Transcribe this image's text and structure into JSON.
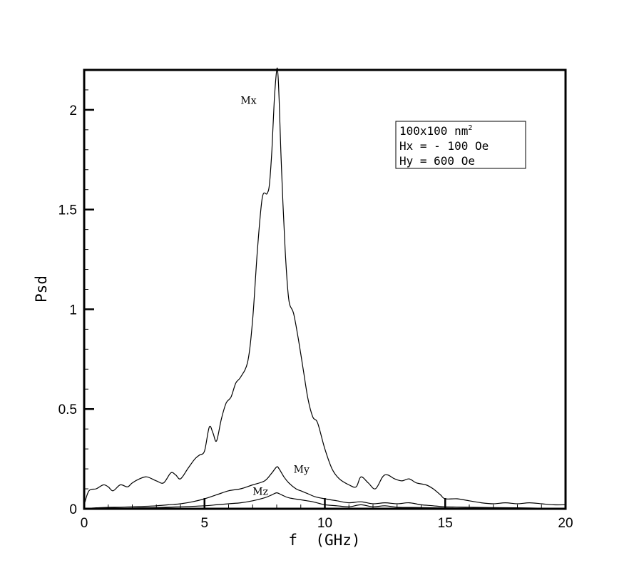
{
  "chart_data": {
    "type": "line",
    "title": "",
    "xlabel": "f  (GHz)",
    "ylabel": "Psd",
    "xlim": [
      0,
      20
    ],
    "ylim": [
      0,
      2.2
    ],
    "x_ticks": [
      0,
      5,
      10,
      15,
      20
    ],
    "x_tick_labels": [
      "0",
      "5",
      "10",
      "15",
      "20"
    ],
    "y_ticks": [
      0,
      0.5,
      1,
      1.5,
      2
    ],
    "y_tick_labels": [
      "0",
      "0.5",
      "1",
      "1.5",
      "2"
    ],
    "grid": false,
    "legend_position": "top-right",
    "annotation_box": {
      "line1_main": "100x100 nm",
      "line1_sup": "2",
      "line2": "Hx = - 100 Oe",
      "line3": "Hy = 600 Oe"
    },
    "series": [
      {
        "name": "Mx",
        "label_at": [
          6.5,
          2.03
        ],
        "x": [
          0,
          0.2,
          0.5,
          0.8,
          1.0,
          1.2,
          1.5,
          1.8,
          2.0,
          2.3,
          2.6,
          3.0,
          3.3,
          3.6,
          3.8,
          4.0,
          4.3,
          4.6,
          4.8,
          5.0,
          5.2,
          5.35,
          5.5,
          5.7,
          5.9,
          6.1,
          6.3,
          6.5,
          6.8,
          7.0,
          7.2,
          7.4,
          7.6,
          7.7,
          7.8,
          7.9,
          8.0,
          8.05,
          8.1,
          8.2,
          8.35,
          8.5,
          8.7,
          8.9,
          9.1,
          9.3,
          9.5,
          9.7,
          10.0,
          10.3,
          10.6,
          11.0,
          11.3,
          11.5,
          11.8,
          12.1,
          12.4,
          12.6,
          12.9,
          13.2,
          13.5,
          13.8,
          14.2,
          14.5,
          14.8,
          15.0,
          15.5,
          16.0,
          16.5,
          17.0,
          17.5,
          18.0,
          18.5,
          19.0,
          19.5,
          20.0
        ],
        "y": [
          0.02,
          0.09,
          0.1,
          0.12,
          0.11,
          0.09,
          0.12,
          0.11,
          0.13,
          0.15,
          0.16,
          0.14,
          0.13,
          0.18,
          0.17,
          0.15,
          0.2,
          0.25,
          0.27,
          0.29,
          0.41,
          0.38,
          0.34,
          0.45,
          0.53,
          0.56,
          0.63,
          0.66,
          0.74,
          0.95,
          1.3,
          1.56,
          1.58,
          1.63,
          1.8,
          2.05,
          2.2,
          2.18,
          2.05,
          1.7,
          1.3,
          1.05,
          0.98,
          0.85,
          0.7,
          0.55,
          0.46,
          0.43,
          0.3,
          0.2,
          0.15,
          0.12,
          0.11,
          0.16,
          0.13,
          0.1,
          0.16,
          0.17,
          0.15,
          0.14,
          0.15,
          0.13,
          0.12,
          0.1,
          0.07,
          0.05,
          0.05,
          0.04,
          0.03,
          0.025,
          0.03,
          0.025,
          0.03,
          0.025,
          0.02,
          0.02
        ]
      },
      {
        "name": "My",
        "label_at": [
          8.7,
          0.18
        ],
        "x": [
          0,
          0.5,
          1.0,
          1.5,
          2.0,
          2.5,
          3.0,
          3.5,
          4.0,
          4.5,
          5.0,
          5.5,
          6.0,
          6.5,
          7.0,
          7.5,
          7.8,
          8.0,
          8.1,
          8.3,
          8.5,
          8.8,
          9.0,
          9.3,
          9.6,
          10.0,
          10.5,
          11.0,
          11.5,
          12.0,
          12.5,
          13.0,
          13.5,
          14.0,
          14.5,
          15.0,
          16.0,
          17.0,
          18.0,
          19.0,
          20.0
        ],
        "y": [
          0.0,
          0.005,
          0.007,
          0.008,
          0.01,
          0.012,
          0.015,
          0.02,
          0.025,
          0.035,
          0.05,
          0.07,
          0.09,
          0.1,
          0.12,
          0.14,
          0.18,
          0.21,
          0.2,
          0.16,
          0.13,
          0.1,
          0.09,
          0.075,
          0.06,
          0.05,
          0.04,
          0.03,
          0.035,
          0.025,
          0.03,
          0.025,
          0.03,
          0.02,
          0.015,
          0.01,
          0.008,
          0.006,
          0.005,
          0.003,
          0.002
        ]
      },
      {
        "name": "Mz",
        "label_at": [
          7.0,
          0.07
        ],
        "x": [
          0,
          1.0,
          2.0,
          3.0,
          4.0,
          5.0,
          5.5,
          6.0,
          6.5,
          7.0,
          7.5,
          7.8,
          8.0,
          8.2,
          8.5,
          9.0,
          9.5,
          10.0,
          10.5,
          11.0,
          11.5,
          12.0,
          12.5,
          13.0,
          14.0,
          15.0,
          16.0,
          17.0,
          18.0,
          19.0,
          20.0
        ],
        "y": [
          0.0,
          0.002,
          0.004,
          0.006,
          0.01,
          0.015,
          0.02,
          0.025,
          0.03,
          0.04,
          0.055,
          0.07,
          0.08,
          0.07,
          0.055,
          0.045,
          0.035,
          0.02,
          0.015,
          0.01,
          0.02,
          0.01,
          0.015,
          0.008,
          0.006,
          0.004,
          0.003,
          0.002,
          0.001,
          0.001,
          0.001
        ]
      }
    ]
  }
}
